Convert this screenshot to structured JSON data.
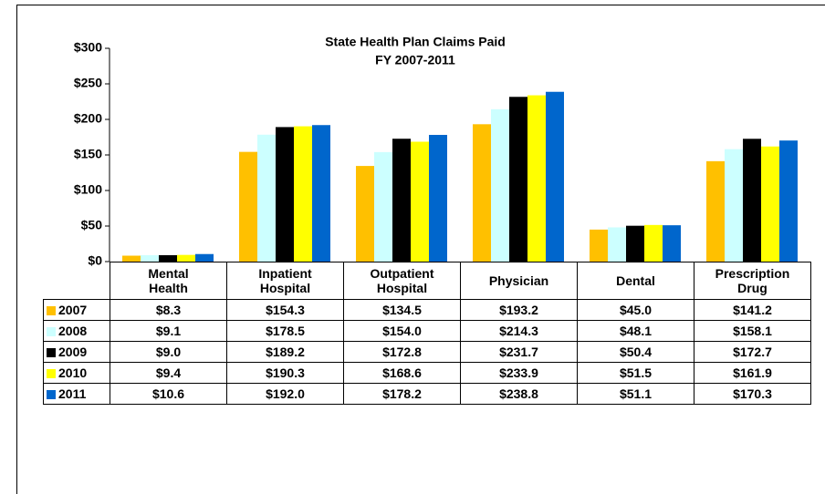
{
  "chart_data": {
    "type": "bar",
    "title": "State Health Plan Claims Paid",
    "subtitle": "FY 2007-2011",
    "categories": [
      "Mental Health",
      "Inpatient Hospital",
      "Outpatient Hospital",
      "Physician",
      "Dental",
      "Prescription Drug"
    ],
    "series": [
      {
        "name": "2007",
        "color": "#FFC000",
        "values": [
          8.3,
          154.3,
          134.5,
          193.2,
          45.0,
          141.2
        ],
        "value_labels": [
          "$8.3",
          "$154.3",
          "$134.5",
          "$193.2",
          "$45.0",
          "$141.2"
        ]
      },
      {
        "name": "2008",
        "color": "#CCFFFF",
        "values": [
          9.1,
          178.5,
          154.0,
          214.3,
          48.1,
          158.1
        ],
        "value_labels": [
          "$9.1",
          "$178.5",
          "$154.0",
          "$214.3",
          "$48.1",
          "$158.1"
        ]
      },
      {
        "name": "2009",
        "color": "#000000",
        "values": [
          9.0,
          189.2,
          172.8,
          231.7,
          50.4,
          172.7
        ],
        "value_labels": [
          "$9.0",
          "$189.2",
          "$172.8",
          "$231.7",
          "$50.4",
          "$172.7"
        ]
      },
      {
        "name": "2010",
        "color": "#FFFF00",
        "values": [
          9.4,
          190.3,
          168.6,
          233.9,
          51.5,
          161.9
        ],
        "value_labels": [
          "$9.4",
          "$190.3",
          "$168.6",
          "$233.9",
          "$51.5",
          "$161.9"
        ]
      },
      {
        "name": "2011",
        "color": "#0066CC",
        "values": [
          10.6,
          192.0,
          178.2,
          238.8,
          51.1,
          170.3
        ],
        "value_labels": [
          "$10.6",
          "$192.0",
          "$178.2",
          "$238.8",
          "$51.1",
          "$170.3"
        ]
      }
    ],
    "ylim": [
      0,
      300
    ],
    "yticks": [
      {
        "value": 0,
        "label": "$0"
      },
      {
        "value": 50,
        "label": "$50"
      },
      {
        "value": 100,
        "label": "$100"
      },
      {
        "value": 150,
        "label": "$150"
      },
      {
        "value": 200,
        "label": "$200"
      },
      {
        "value": 250,
        "label": "$250"
      },
      {
        "value": 300,
        "label": "$300"
      }
    ]
  }
}
